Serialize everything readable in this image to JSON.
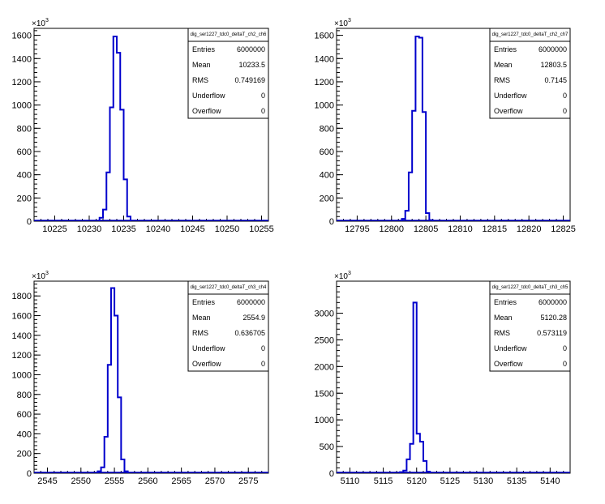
{
  "chart_data": [
    {
      "type": "bar",
      "stats_title": "dig_ser1227_tdc0_deltaT_ch2_ch6",
      "y_exponent_label": {
        "base": "×10",
        "exp": "3"
      },
      "x_ticks": [
        "10225",
        "10230",
        "10235",
        "10240",
        "10245",
        "10250",
        "10255"
      ],
      "x_tick_values": [
        10225,
        10230,
        10235,
        10240,
        10245,
        10250,
        10255
      ],
      "y_ticks": [
        "0",
        "200",
        "400",
        "600",
        "800",
        "1000",
        "1200",
        "1400",
        "1600"
      ],
      "y_tick_values": [
        0,
        200,
        400,
        600,
        800,
        1000,
        1200,
        1400,
        1600
      ],
      "xlim": [
        10222,
        10256
      ],
      "ylim": [
        0,
        1660
      ],
      "bin_width": 0.5,
      "bins_x": [
        10231.5,
        10232,
        10232.5,
        10233,
        10233.5,
        10234,
        10234.5,
        10235,
        10235.5
      ],
      "bins_y": [
        30,
        100,
        420,
        980,
        1590,
        1450,
        960,
        360,
        40
      ],
      "color": "#0000cc",
      "stats": [
        {
          "key": "Entries",
          "value": "6000000"
        },
        {
          "key": "Mean",
          "value": "10233.5"
        },
        {
          "key": "RMS",
          "value": "0.749169"
        },
        {
          "key": "Underflow",
          "value": "0"
        },
        {
          "key": "Overflow",
          "value": "0"
        }
      ]
    },
    {
      "type": "bar",
      "stats_title": "dig_ser1227_tdc0_deltaT_ch2_ch7",
      "y_exponent_label": {
        "base": "×10",
        "exp": "3"
      },
      "x_ticks": [
        "12795",
        "12800",
        "12805",
        "12810",
        "12815",
        "12820",
        "12825"
      ],
      "x_tick_values": [
        12795,
        12800,
        12805,
        12810,
        12815,
        12820,
        12825
      ],
      "y_ticks": [
        "0",
        "200",
        "400",
        "600",
        "800",
        "1000",
        "1200",
        "1400",
        "1600"
      ],
      "y_tick_values": [
        0,
        200,
        400,
        600,
        800,
        1000,
        1200,
        1400,
        1600
      ],
      "xlim": [
        12792,
        12826
      ],
      "ylim": [
        0,
        1660
      ],
      "bin_width": 0.5,
      "bins_x": [
        12801.5,
        12802,
        12802.5,
        12803,
        12803.5,
        12804,
        12804.5,
        12805,
        12805.5
      ],
      "bins_y": [
        20,
        90,
        420,
        950,
        1590,
        1580,
        940,
        70,
        10
      ],
      "color": "#0000cc",
      "stats": [
        {
          "key": "Entries",
          "value": "6000000"
        },
        {
          "key": "Mean",
          "value": "12803.5"
        },
        {
          "key": "RMS",
          "value": "0.7145"
        },
        {
          "key": "Underflow",
          "value": "0"
        },
        {
          "key": "Overflow",
          "value": "0"
        }
      ]
    },
    {
      "type": "bar",
      "stats_title": "dig_ser1227_tdc0_deltaT_ch3_ch4",
      "y_exponent_label": {
        "base": "×10",
        "exp": "3"
      },
      "x_ticks": [
        "2545",
        "2550",
        "2555",
        "2560",
        "2565",
        "2570",
        "2575"
      ],
      "x_tick_values": [
        2545,
        2550,
        2555,
        2560,
        2565,
        2570,
        2575
      ],
      "y_ticks": [
        "0",
        "200",
        "400",
        "600",
        "800",
        "1000",
        "1200",
        "1400",
        "1600",
        "1800"
      ],
      "y_tick_values": [
        0,
        200,
        400,
        600,
        800,
        1000,
        1200,
        1400,
        1600,
        1800
      ],
      "xlim": [
        2543,
        2578
      ],
      "ylim": [
        0,
        1950
      ],
      "bin_width": 0.5,
      "bins_x": [
        2552.5,
        2553,
        2553.5,
        2554,
        2554.5,
        2555,
        2555.5,
        2556,
        2556.5
      ],
      "bins_y": [
        20,
        60,
        370,
        1100,
        1880,
        1600,
        770,
        140,
        20
      ],
      "color": "#0000cc",
      "stats": [
        {
          "key": "Entries",
          "value": "6000000"
        },
        {
          "key": "Mean",
          "value": "2554.9"
        },
        {
          "key": "RMS",
          "value": "0.636705"
        },
        {
          "key": "Underflow",
          "value": "0"
        },
        {
          "key": "Overflow",
          "value": "0"
        }
      ]
    },
    {
      "type": "bar",
      "stats_title": "dig_ser1227_tdc0_deltaT_ch3_ch5",
      "y_exponent_label": {
        "base": "×10",
        "exp": "3"
      },
      "x_ticks": [
        "5110",
        "5115",
        "5120",
        "5125",
        "5130",
        "5135",
        "5140"
      ],
      "x_tick_values": [
        5110,
        5115,
        5120,
        5125,
        5130,
        5135,
        5140
      ],
      "y_ticks": [
        "0",
        "500",
        "1000",
        "1500",
        "2000",
        "2500",
        "3000"
      ],
      "y_tick_values": [
        0,
        500,
        1000,
        1500,
        2000,
        2500,
        3000
      ],
      "xlim": [
        5108,
        5143
      ],
      "ylim": [
        0,
        3600
      ],
      "bin_width": 0.5,
      "bins_x": [
        5117.5,
        5118,
        5118.5,
        5119,
        5119.5,
        5120,
        5120.5,
        5121,
        5121.5
      ],
      "bins_y": [
        20,
        50,
        260,
        550,
        3200,
        740,
        590,
        230,
        30
      ],
      "color": "#0000cc",
      "stats": [
        {
          "key": "Entries",
          "value": "6000000"
        },
        {
          "key": "Mean",
          "value": "5120.28"
        },
        {
          "key": "RMS",
          "value": "0.573119"
        },
        {
          "key": "Underflow",
          "value": "0"
        },
        {
          "key": "Overflow",
          "value": "0"
        }
      ]
    }
  ]
}
